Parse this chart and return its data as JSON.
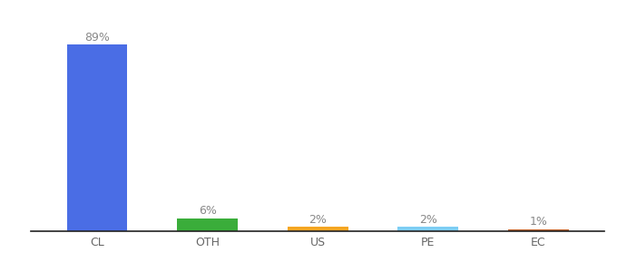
{
  "categories": [
    "CL",
    "OTH",
    "US",
    "PE",
    "EC"
  ],
  "values": [
    89,
    6,
    2,
    2,
    1
  ],
  "bar_colors": [
    "#4a6de5",
    "#3aad3a",
    "#f5a623",
    "#7ecef4",
    "#c0622a"
  ],
  "labels": [
    "89%",
    "6%",
    "2%",
    "2%",
    "1%"
  ],
  "ylim": [
    0,
    100
  ],
  "background_color": "#ffffff",
  "label_fontsize": 9,
  "tick_fontsize": 9,
  "bar_width": 0.55
}
